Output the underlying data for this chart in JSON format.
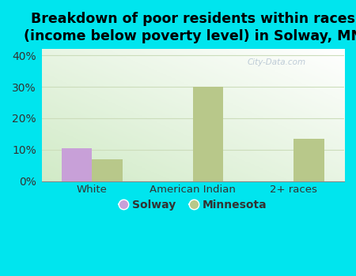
{
  "title": "Breakdown of poor residents within races\n(income below poverty level) in Solway, MN",
  "categories": [
    "White",
    "American Indian",
    "2+ races"
  ],
  "solway_values": [
    10.5,
    0,
    0
  ],
  "minnesota_values": [
    7.0,
    30.0,
    13.5
  ],
  "solway_color": "#c8a0d8",
  "minnesota_color": "#b8c88a",
  "bar_width": 0.3,
  "ylim": [
    0,
    42
  ],
  "yticks": [
    0,
    10,
    20,
    30,
    40
  ],
  "ytick_labels": [
    "0%",
    "10%",
    "20%",
    "30%",
    "40%"
  ],
  "background_outer": "#00e5ee",
  "grid_color": "#e0e8d0",
  "title_fontsize": 12.5,
  "legend_labels": [
    "Solway",
    "Minnesota"
  ],
  "watermark": "City-Data.com"
}
